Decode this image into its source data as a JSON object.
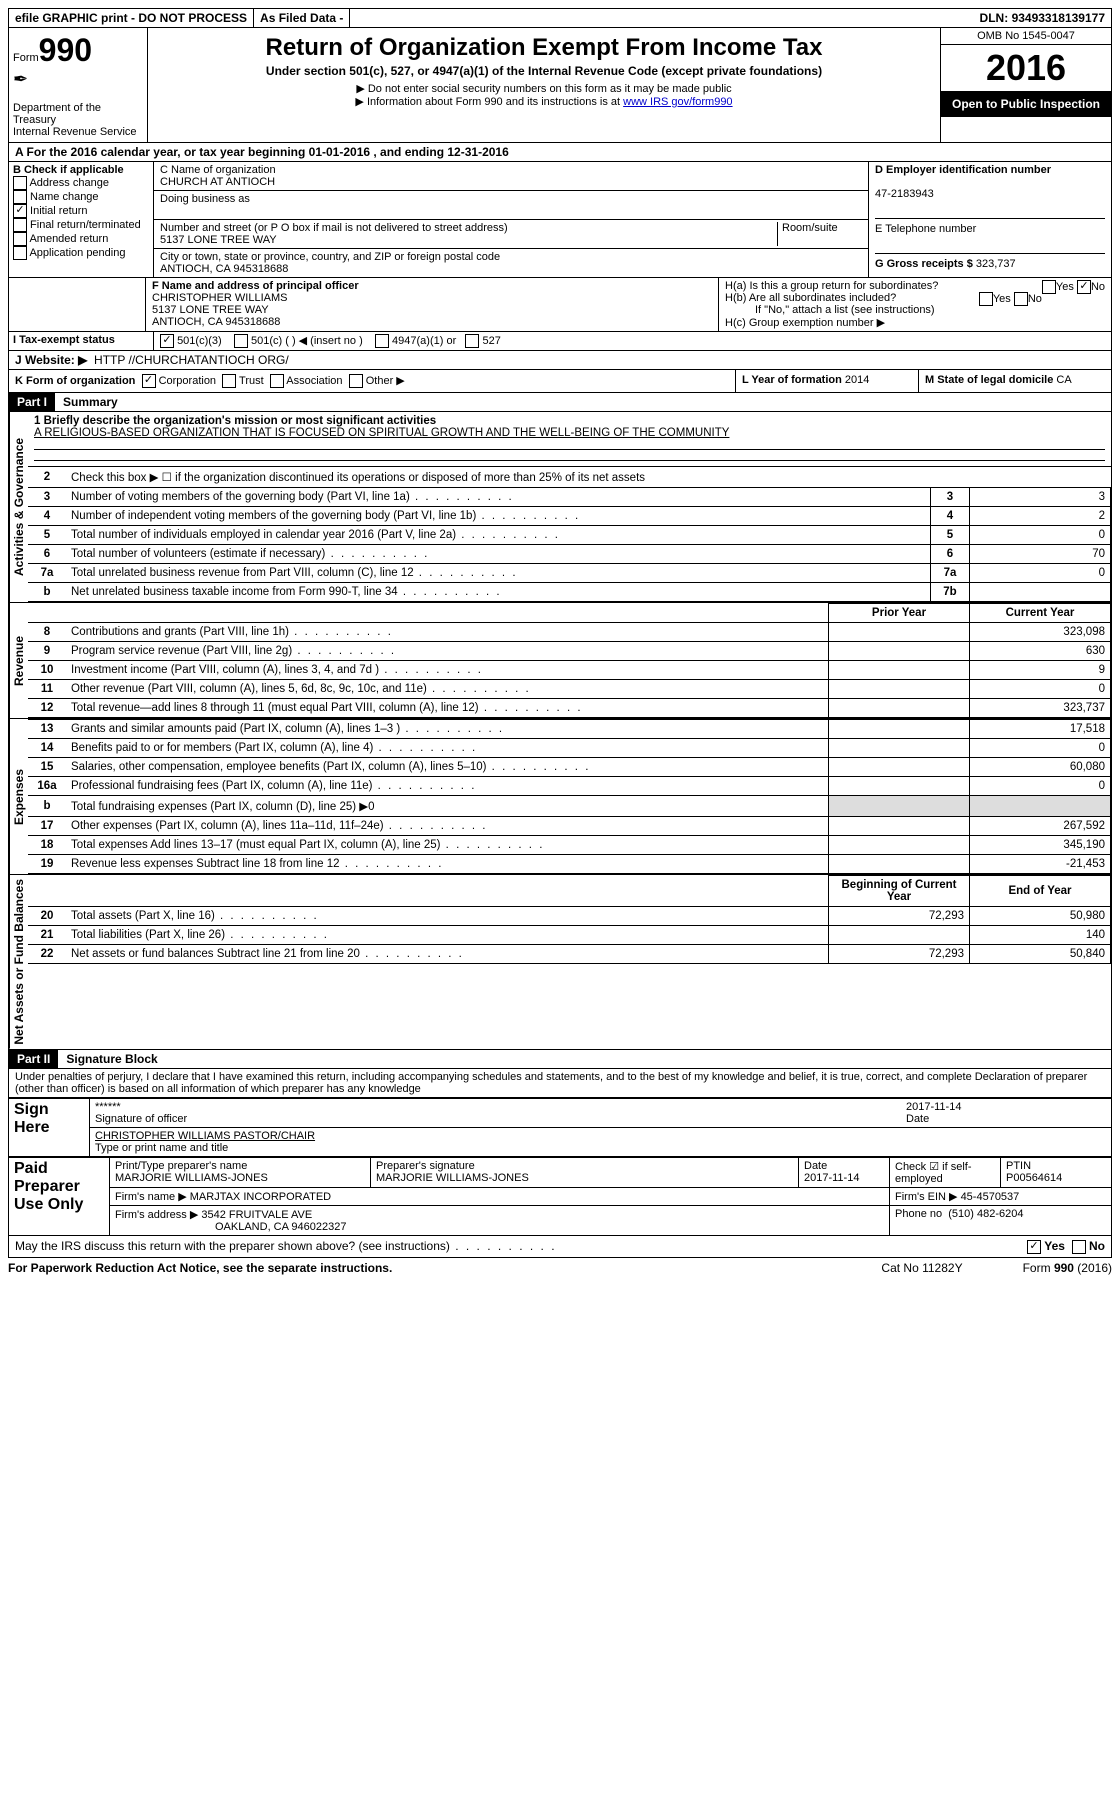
{
  "topbar": {
    "efile": "efile GRAPHIC print - DO NOT PROCESS",
    "asfiled": "As Filed Data -",
    "dln_label": "DLN:",
    "dln": "93493318139177"
  },
  "header": {
    "form_label": "Form",
    "form_num": "990",
    "dept": "Department of the Treasury",
    "irs": "Internal Revenue Service",
    "title": "Return of Organization Exempt From Income Tax",
    "subtitle": "Under section 501(c), 527, or 4947(a)(1) of the Internal Revenue Code (except private foundations)",
    "note1": "▶ Do not enter social security numbers on this form as it may be made public",
    "note2": "▶ Information about Form 990 and its instructions is at ",
    "link": "www IRS gov/form990",
    "omb": "OMB No 1545-0047",
    "year": "2016",
    "open": "Open to Public Inspection"
  },
  "lineA": "A  For the 2016 calendar year, or tax year beginning 01-01-2016   , and ending 12-31-2016",
  "boxB": {
    "title": "B Check if applicable",
    "items": [
      "Address change",
      "Name change",
      "Initial return",
      "Final return/terminated",
      "Amended return",
      "Application pending"
    ],
    "checked_idx": 2
  },
  "boxC": {
    "label_name": "C Name of organization",
    "name": "CHURCH AT ANTIOCH",
    "dba_label": "Doing business as",
    "dba": "",
    "addr_label": "Number and street (or P O  box if mail is not delivered to street address)",
    "room_label": "Room/suite",
    "addr": "5137 LONE TREE WAY",
    "city_label": "City or town, state or province, country, and ZIP or foreign postal code",
    "city": "ANTIOCH, CA  945318688"
  },
  "boxD": {
    "label": "D Employer identification number",
    "val": "47-2183943"
  },
  "boxE": {
    "label": "E Telephone number",
    "val": ""
  },
  "boxG": {
    "label": "G Gross receipts $",
    "val": "323,737"
  },
  "boxF": {
    "label": "F  Name and address of principal officer",
    "name": "CHRISTOPHER WILLIAMS",
    "addr1": "5137 LONE TREE WAY",
    "addr2": "ANTIOCH, CA  945318688"
  },
  "boxH": {
    "a": "H(a)  Is this a group return for subordinates?",
    "b": "H(b)  Are all subordinates included?",
    "ifno": "If \"No,\" attach a list  (see instructions)",
    "c": "H(c)  Group exemption number ▶",
    "yes": "Yes",
    "no": "No"
  },
  "lineI": {
    "label": "I   Tax-exempt status",
    "c3": "501(c)(3)",
    "c": "501(c) (   ) ◀ (insert no )",
    "a1": "4947(a)(1) or",
    "s527": "527"
  },
  "lineJ": {
    "label": "J  Website: ▶",
    "val": "HTTP //CHURCHATANTIOCH ORG/"
  },
  "lineK": {
    "label": "K Form of organization",
    "corp": "Corporation",
    "trust": "Trust",
    "assoc": "Association",
    "other": "Other ▶"
  },
  "lineL": {
    "label": "L Year of formation",
    "val": "2014"
  },
  "lineM": {
    "label": "M State of legal domicile",
    "val": "CA"
  },
  "part1": {
    "hdr": "Part I",
    "title": "Summary"
  },
  "mission_label": "1 Briefly describe the organization's mission or most significant activities",
  "mission": "A RELIGIOUS-BASED ORGANIZATION THAT IS FOCUSED ON SPIRITUAL GROWTH AND THE WELL-BEING OF THE COMMUNITY",
  "gov_lines": [
    {
      "n": "2",
      "t": "Check this box ▶ ☐  if the organization discontinued its operations or disposed of more than 25% of its net assets"
    },
    {
      "n": "3",
      "t": "Number of voting members of the governing body (Part VI, line 1a)",
      "ln": "3",
      "v": "3"
    },
    {
      "n": "4",
      "t": "Number of independent voting members of the governing body (Part VI, line 1b)",
      "ln": "4",
      "v": "2"
    },
    {
      "n": "5",
      "t": "Total number of individuals employed in calendar year 2016 (Part V, line 2a)",
      "ln": "5",
      "v": "0"
    },
    {
      "n": "6",
      "t": "Total number of volunteers (estimate if necessary)",
      "ln": "6",
      "v": "70"
    },
    {
      "n": "7a",
      "t": "Total unrelated business revenue from Part VIII, column (C), line 12",
      "ln": "7a",
      "v": "0"
    },
    {
      "n": "b",
      "t": "Net unrelated business taxable income from Form 990-T, line 34",
      "ln": "7b",
      "v": ""
    }
  ],
  "col_hdr": {
    "prior": "Prior Year",
    "current": "Current Year"
  },
  "rev_lines": [
    {
      "n": "8",
      "t": "Contributions and grants (Part VIII, line 1h)",
      "p": "",
      "c": "323,098"
    },
    {
      "n": "9",
      "t": "Program service revenue (Part VIII, line 2g)",
      "p": "",
      "c": "630"
    },
    {
      "n": "10",
      "t": "Investment income (Part VIII, column (A), lines 3, 4, and 7d )",
      "p": "",
      "c": "9"
    },
    {
      "n": "11",
      "t": "Other revenue (Part VIII, column (A), lines 5, 6d, 8c, 9c, 10c, and 11e)",
      "p": "",
      "c": "0"
    },
    {
      "n": "12",
      "t": "Total revenue—add lines 8 through 11 (must equal Part VIII, column (A), line 12)",
      "p": "",
      "c": "323,737"
    }
  ],
  "exp_lines": [
    {
      "n": "13",
      "t": "Grants and similar amounts paid (Part IX, column (A), lines 1–3 )",
      "p": "",
      "c": "17,518"
    },
    {
      "n": "14",
      "t": "Benefits paid to or for members (Part IX, column (A), line 4)",
      "p": "",
      "c": "0"
    },
    {
      "n": "15",
      "t": "Salaries, other compensation, employee benefits (Part IX, column (A), lines 5–10)",
      "p": "",
      "c": "60,080"
    },
    {
      "n": "16a",
      "t": "Professional fundraising fees (Part IX, column (A), line 11e)",
      "p": "",
      "c": "0"
    },
    {
      "n": "b",
      "t": "Total fundraising expenses (Part IX, column (D), line 25) ▶0",
      "p": null,
      "c": null
    },
    {
      "n": "17",
      "t": "Other expenses (Part IX, column (A), lines 11a–11d, 11f–24e)",
      "p": "",
      "c": "267,592"
    },
    {
      "n": "18",
      "t": "Total expenses  Add lines 13–17 (must equal Part IX, column (A), line 25)",
      "p": "",
      "c": "345,190"
    },
    {
      "n": "19",
      "t": "Revenue less expenses  Subtract line 18 from line 12",
      "p": "",
      "c": "-21,453"
    }
  ],
  "na_hdr": {
    "beg": "Beginning of Current Year",
    "end": "End of Year"
  },
  "na_lines": [
    {
      "n": "20",
      "t": "Total assets (Part X, line 16)",
      "p": "72,293",
      "c": "50,980"
    },
    {
      "n": "21",
      "t": "Total liabilities (Part X, line 26)",
      "p": "",
      "c": "140"
    },
    {
      "n": "22",
      "t": "Net assets or fund balances  Subtract line 21 from line 20",
      "p": "72,293",
      "c": "50,840"
    }
  ],
  "part2": {
    "hdr": "Part II",
    "title": "Signature Block"
  },
  "perjury": "Under penalties of perjury, I declare that I have examined this return, including accompanying schedules and statements, and to the best of my knowledge and belief, it is true, correct, and complete  Declaration of preparer (other than officer) is based on all information of which preparer has any knowledge",
  "sign": {
    "here": "Sign Here",
    "stars": "******",
    "sig_label": "Signature of officer",
    "date": "2017-11-14",
    "date_label": "Date",
    "name": "CHRISTOPHER WILLIAMS  PASTOR/CHAIR",
    "name_label": "Type or print name and title"
  },
  "paid": {
    "label": "Paid Preparer Use Only",
    "c1": "Print/Type preparer's name",
    "v1": "MARJORIE WILLIAMS-JONES",
    "c2": "Preparer's signature",
    "v2": "MARJORIE WILLIAMS-JONES",
    "c3": "Date",
    "v3": "2017-11-14",
    "c4": "Check ☑ if self-employed",
    "c5": "PTIN",
    "v5": "P00564614",
    "firm_l": "Firm's name    ▶",
    "firm": "MARJTAX INCORPORATED",
    "ein_l": "Firm's EIN ▶",
    "ein": "45-4570537",
    "addr_l": "Firm's address ▶",
    "addr": "3542 FRUITVALE AVE",
    "addr2": "OAKLAND, CA  946022327",
    "phone_l": "Phone no",
    "phone": "(510) 482-6204"
  },
  "discuss": "May the IRS discuss this return with the preparer shown above? (see instructions)",
  "paperwork": "For Paperwork Reduction Act Notice, see the separate instructions.",
  "cat": "Cat  No  11282Y",
  "formfoot": "Form 990 (2016)",
  "yes": "Yes",
  "no": "No",
  "side": {
    "gov": "Activities & Governance",
    "rev": "Revenue",
    "exp": "Expenses",
    "na": "Net Assets or Fund Balances"
  }
}
